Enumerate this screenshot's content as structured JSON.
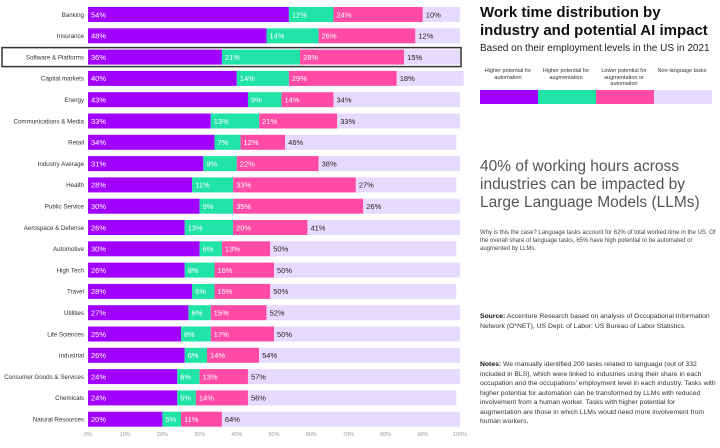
{
  "title": "Work time distribution by industry and potential AI impact",
  "subtitle": "Based on their employment levels in the US in 2021",
  "legend": [
    {
      "label": "Higher potential for automation",
      "color": "#a100ff"
    },
    {
      "label": "Higher potential for augmentation",
      "color": "#20e3a6"
    },
    {
      "label": "Lower potential for augmentation or automation",
      "color": "#ff4ba5"
    },
    {
      "label": "Non-language tasks",
      "color": "#e6dbff"
    }
  ],
  "headline": "40% of working hours across industries can be impacted by Large Language Models (LLMs)",
  "why_text": "Why is this the case? Language tasks account for 62% of total worked time in the US. Of the overall share of language tasks, 65% have high potential to be automated or augmented by LLMs.",
  "source_label": "Source:",
  "source_text": "Accenture Research based on analysis of Occupational Information Network (O*NET), US Dept. of Labor; US Bureau of Labor Statistics.",
  "notes_label": "Notes:",
  "notes_text": "We manually identified 200 tasks related to language (out of 332 included in BLS), which were linked to industries using their share in each occupation and the occupations' employment level in each industry. Tasks with higher potential for automation can be transformed by LLMs with reduced involvement from a human worker. Tasks with higher potential for augmentation are those in which LLMs would need more involvement from human workers.",
  "chart_data": {
    "type": "bar",
    "orientation": "horizontal",
    "stacked": true,
    "highlighted_category": "Software & Platforms",
    "categories": [
      "Banking",
      "Insurance",
      "Software & Platforms",
      "Capital markets",
      "Energy",
      "Communications & Media",
      "Retail",
      "Industry Average",
      "Health",
      "Public Service",
      "Aerospace & Defense",
      "Automotive",
      "High Tech",
      "Travel",
      "Utilities",
      "Life Sciences",
      "Industrial",
      "Consumer Goods & Services",
      "Chemicals",
      "Natural Resources"
    ],
    "series": [
      {
        "name": "Higher potential for automation",
        "color": "#a100ff",
        "values": [
          54,
          48,
          36,
          40,
          43,
          33,
          34,
          31,
          28,
          30,
          26,
          30,
          26,
          28,
          27,
          25,
          26,
          24,
          24,
          20
        ]
      },
      {
        "name": "Higher potential for augmentation",
        "color": "#20e3a6",
        "values": [
          12,
          14,
          21,
          14,
          9,
          13,
          7,
          9,
          11,
          9,
          13,
          6,
          8,
          6,
          6,
          8,
          6,
          6,
          5,
          5
        ]
      },
      {
        "name": "Lower potential for augmentation or automation",
        "color": "#ff4ba5",
        "values": [
          24,
          26,
          28,
          29,
          14,
          21,
          12,
          22,
          33,
          35,
          20,
          13,
          16,
          15,
          15,
          17,
          14,
          13,
          14,
          11
        ]
      },
      {
        "name": "Non-language tasks",
        "color": "#e6dbff",
        "values": [
          10,
          12,
          15,
          18,
          34,
          33,
          46,
          38,
          27,
          26,
          41,
          50,
          50,
          50,
          52,
          50,
          54,
          57,
          56,
          64
        ]
      }
    ],
    "xticks": [
      "0%",
      "10%",
      "20%",
      "30%",
      "40%",
      "50%",
      "60%",
      "70%",
      "80%",
      "90%",
      "100%"
    ],
    "xlim": [
      0,
      100
    ]
  }
}
